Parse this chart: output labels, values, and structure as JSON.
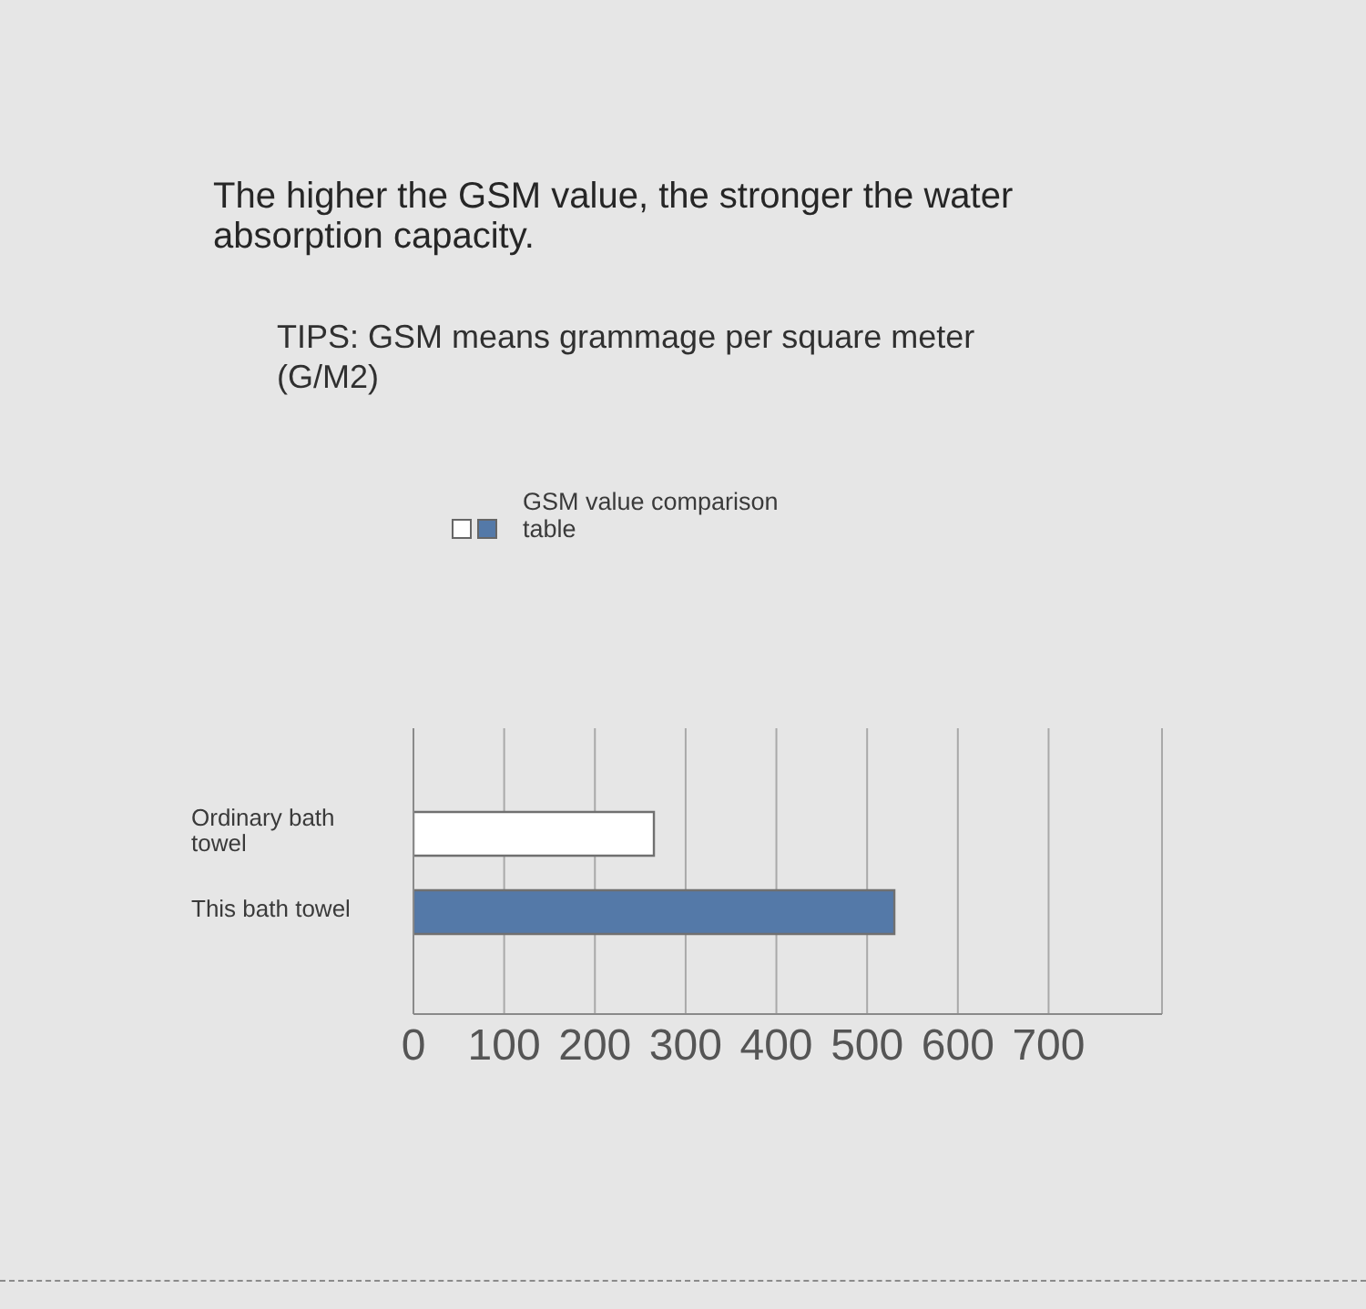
{
  "chart_data": {
    "type": "bar",
    "orientation": "horizontal",
    "title": "The higher the GSM value, the stronger the water absorption capacity.",
    "subtitle": "TIPS: GSM means grammage per square meter (G/M2)",
    "categories": [
      "Ordinary bath towel",
      "This bath towel"
    ],
    "series": [
      {
        "name": "GSM value comparison table",
        "colors": [
          "#ffffff",
          "#5479a8"
        ],
        "values": [
          265,
          530
        ]
      }
    ],
    "xlim": [
      0,
      825
    ],
    "xticks": [
      0,
      100,
      200,
      300,
      400,
      500,
      600,
      700
    ],
    "grid": "x",
    "legend": "top left"
  }
}
